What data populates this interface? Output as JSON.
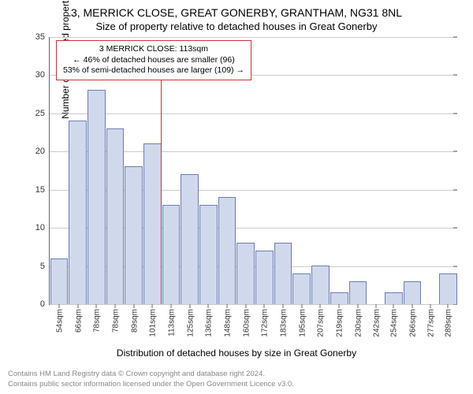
{
  "title": "3, MERRICK CLOSE, GREAT GONERBY, GRANTHAM, NG31 8NL",
  "subtitle": "Size of property relative to detached houses in Great Gonerby",
  "chart": {
    "type": "bar",
    "ylabel": "Number of detached properties",
    "xlabel": "Distribution of detached houses by size in Great Gonerby",
    "ylim": [
      0,
      35
    ],
    "ytick_step": 5,
    "yticks": [
      0,
      5,
      10,
      15,
      20,
      25,
      30,
      35
    ],
    "bar_fill": "#d0d8ec",
    "bar_border": "#6a7fb0",
    "grid_color": "#cccccc",
    "background_color": "#ffffff",
    "categories": [
      "54sqm",
      "66sqm",
      "78sqm",
      "78sqm",
      "89sqm",
      "101sqm",
      "113sqm",
      "125sqm",
      "136sqm",
      "148sqm",
      "160sqm",
      "172sqm",
      "183sqm",
      "195sqm",
      "207sqm",
      "219sqm",
      "230sqm",
      "242sqm",
      "254sqm",
      "266sqm",
      "277sqm",
      "289sqm"
    ],
    "values": [
      6,
      24,
      28,
      23,
      18,
      21,
      13,
      17,
      13,
      14,
      8,
      7,
      8,
      4,
      5,
      1.5,
      3,
      0,
      1.5,
      3,
      0,
      4
    ]
  },
  "annotation": {
    "lines": [
      "3 MERRICK CLOSE: 113sqm",
      "← 46% of detached houses are smaller (96)",
      "53% of semi-detached houses are larger (109) →"
    ],
    "border_color": "#cc3333",
    "marker_category_index": 5,
    "marker_color": "#cc3333"
  },
  "footer": {
    "line1": "Contains HM Land Registry data © Crown copyright and database right 2024.",
    "line2": "Contains public sector information licensed under the Open Government Licence v3.0.",
    "color": "#888888"
  }
}
